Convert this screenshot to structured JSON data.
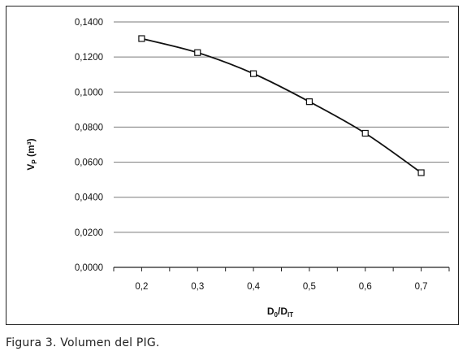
{
  "caption": "Figura 3. Volumen del PIG.",
  "chart_data": {
    "type": "line",
    "x": [
      0.2,
      0.3,
      0.4,
      0.5,
      0.6,
      0.7
    ],
    "x_tick_labels": [
      "0,2",
      "0,3",
      "0,4",
      "0,5",
      "0,6",
      "0,7"
    ],
    "y_ticks": [
      0,
      0.02,
      0.04,
      0.06,
      0.08,
      0.1,
      0.12,
      0.14
    ],
    "y_tick_labels": [
      "0,0000",
      "0,0200",
      "0,0400",
      "0,0600",
      "0,0800",
      "0,1000",
      "0,1200",
      "0,1400"
    ],
    "series": [
      {
        "values": [
          0.1305,
          0.1225,
          0.1105,
          0.0945,
          0.0765,
          0.054
        ]
      }
    ],
    "xlabel": "D0/DIT",
    "xlabel_main": "D",
    "xlabel_sub1": "0",
    "xlabel_sep": "/D",
    "xlabel_sub2": "IT",
    "ylabel": "VP (m³)",
    "ylabel_main": "V",
    "ylabel_sub": "P",
    "ylabel_rest": " (m³)",
    "ylim": [
      0,
      0.14
    ],
    "grid": true,
    "marker": "open-square",
    "line_color": "#111111",
    "grid_color": "#7a7a7a"
  }
}
